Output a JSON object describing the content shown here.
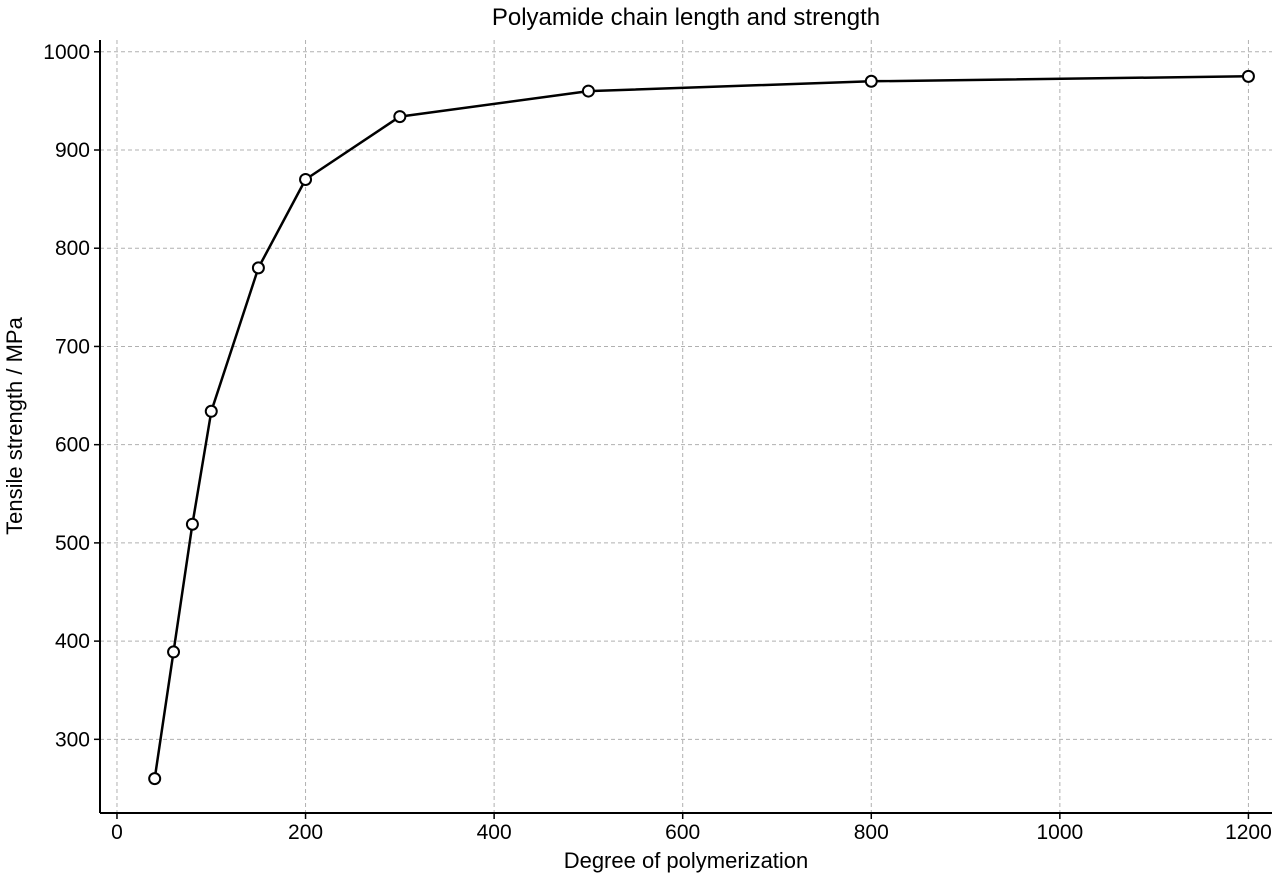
{
  "chart_data": {
    "type": "line",
    "title": "Polyamide chain length and strength",
    "xlabel": "Degree of polymerization",
    "ylabel": "Tensile strength / MPa",
    "xlim": [
      -18,
      1225
    ],
    "ylim": [
      225,
      1012
    ],
    "xticks": [
      0,
      200,
      400,
      600,
      800,
      1000,
      1200
    ],
    "yticks": [
      300,
      400,
      500,
      600,
      700,
      800,
      900,
      1000
    ],
    "grid": true,
    "series": [
      {
        "x": [
          40,
          60,
          80,
          100,
          150,
          200,
          300,
          500,
          800,
          1200
        ],
        "values": [
          260,
          389,
          519,
          634,
          780,
          870,
          934,
          960,
          970,
          975
        ],
        "color": "#000000",
        "marker": "open-circle"
      }
    ]
  }
}
